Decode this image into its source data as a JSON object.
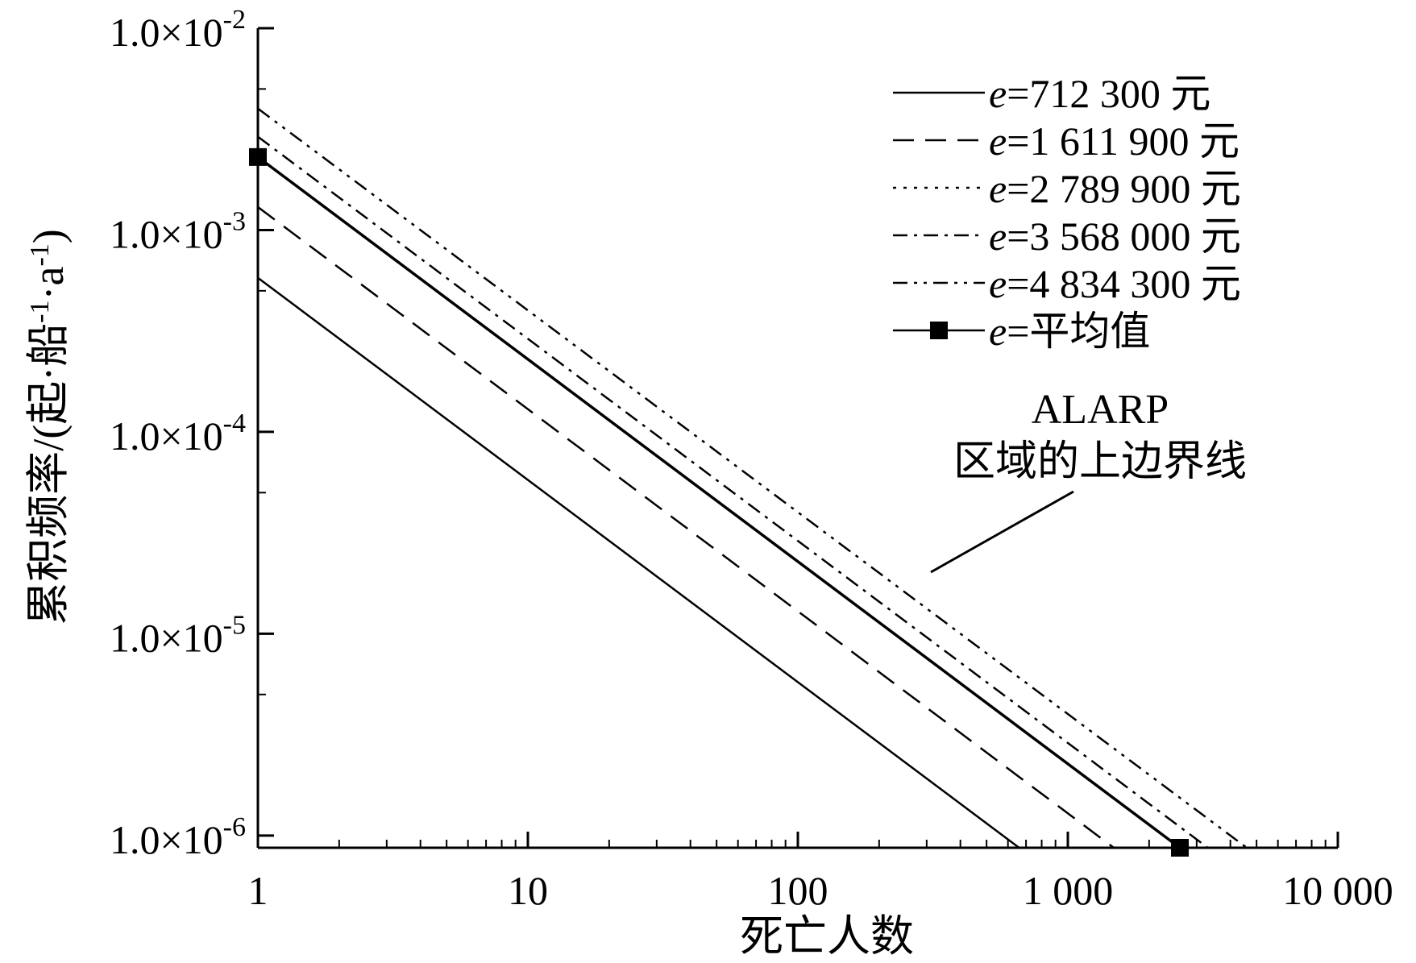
{
  "chart_data": {
    "type": "line",
    "xscale": "log",
    "yscale": "log",
    "xlabel": "死亡人数",
    "ylabel": "累积频率/(起·船",
    "ylabel_parts": [
      "-1",
      "·a",
      "-1",
      ")"
    ],
    "xlim": [
      1,
      10000
    ],
    "ylim": [
      8.7e-07,
      0.01
    ],
    "x_ticks": [
      {
        "value": 1,
        "label": "1"
      },
      {
        "value": 10,
        "label": "10"
      },
      {
        "value": 100,
        "label": "100"
      },
      {
        "value": 1000,
        "label": "1 000"
      },
      {
        "value": 10000,
        "label": "10 000"
      }
    ],
    "y_ticks": [
      {
        "value": 0.01,
        "mantissa": "1.0×10",
        "exp": "-2"
      },
      {
        "value": 0.001,
        "mantissa": "1.0×10",
        "exp": "-3"
      },
      {
        "value": 0.0001,
        "mantissa": "1.0×10",
        "exp": "-4"
      },
      {
        "value": 1e-05,
        "mantissa": "1.0×10",
        "exp": "-5"
      },
      {
        "value": 1e-06,
        "mantissa": "1.0×10",
        "exp": "-6"
      }
    ],
    "legend_position": "top-right",
    "series": [
      {
        "prefix": "e",
        "label": "=712 300 元",
        "style": "solid",
        "points": [
          [
            1,
            0.00058
          ],
          [
            660,
            8.7e-07
          ]
        ]
      },
      {
        "prefix": "e",
        "label": "=1 611 900 元",
        "style": "dashed",
        "points": [
          [
            1,
            0.0013
          ],
          [
            1480,
            8.7e-07
          ]
        ]
      },
      {
        "prefix": "e",
        "label": "=2 789 900 元",
        "style": "dotted",
        "points": [
          [
            1,
            0.0023
          ],
          [
            2600,
            8.7e-07
          ]
        ]
      },
      {
        "prefix": "e",
        "label": "=3 568 000 元",
        "style": "dashdot",
        "points": [
          [
            1,
            0.0029
          ],
          [
            3300,
            8.7e-07
          ]
        ]
      },
      {
        "prefix": "e",
        "label": "=4 834 300 元",
        "style": "dashdotdot",
        "points": [
          [
            1,
            0.004
          ],
          [
            4600,
            8.7e-07
          ]
        ]
      },
      {
        "prefix": "e",
        "label": "=平均值",
        "style": "solid-marker",
        "points": [
          [
            1,
            0.0023
          ],
          [
            2600,
            8.7e-07
          ]
        ]
      }
    ],
    "annotation": {
      "lines": [
        "ALARP",
        "区域的上边界线"
      ]
    },
    "colors": {
      "line": "#000000",
      "background": "#ffffff"
    }
  }
}
